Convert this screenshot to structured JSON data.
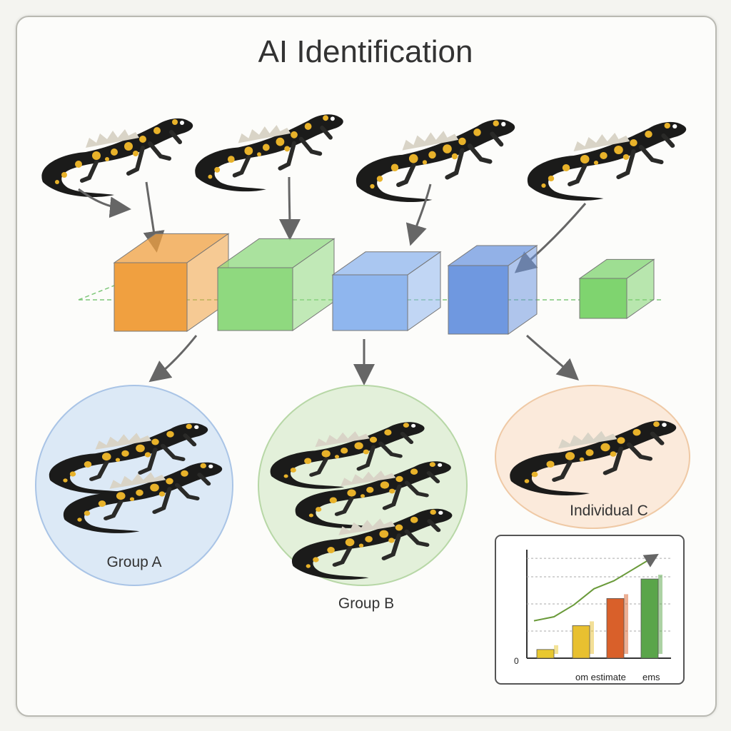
{
  "title": "AI Identification",
  "groups": [
    {
      "label": "Group A",
      "color": "#dce9f6"
    },
    {
      "label": "Group B",
      "color": "#e3f0da"
    },
    {
      "label": "Individual C",
      "color": "#fbeadb"
    }
  ],
  "pipeline_blocks": [
    "#f0a040",
    "#8fd97f",
    "#8fb6ee",
    "#6f98e0",
    "#7fd46f"
  ],
  "inset_chart": {
    "y_tick_label": "0",
    "x_label_parts": [
      "om estimate",
      "ems"
    ],
    "bar_levels": [
      0.08,
      0.3,
      0.55,
      0.73
    ],
    "bar_colors": [
      "#e8c830",
      "#e8c030",
      "#d9602a",
      "#5aa54a"
    ],
    "trend_levels": [
      0.2,
      0.25,
      0.4,
      0.6,
      0.7,
      0.85,
      1.0
    ]
  }
}
